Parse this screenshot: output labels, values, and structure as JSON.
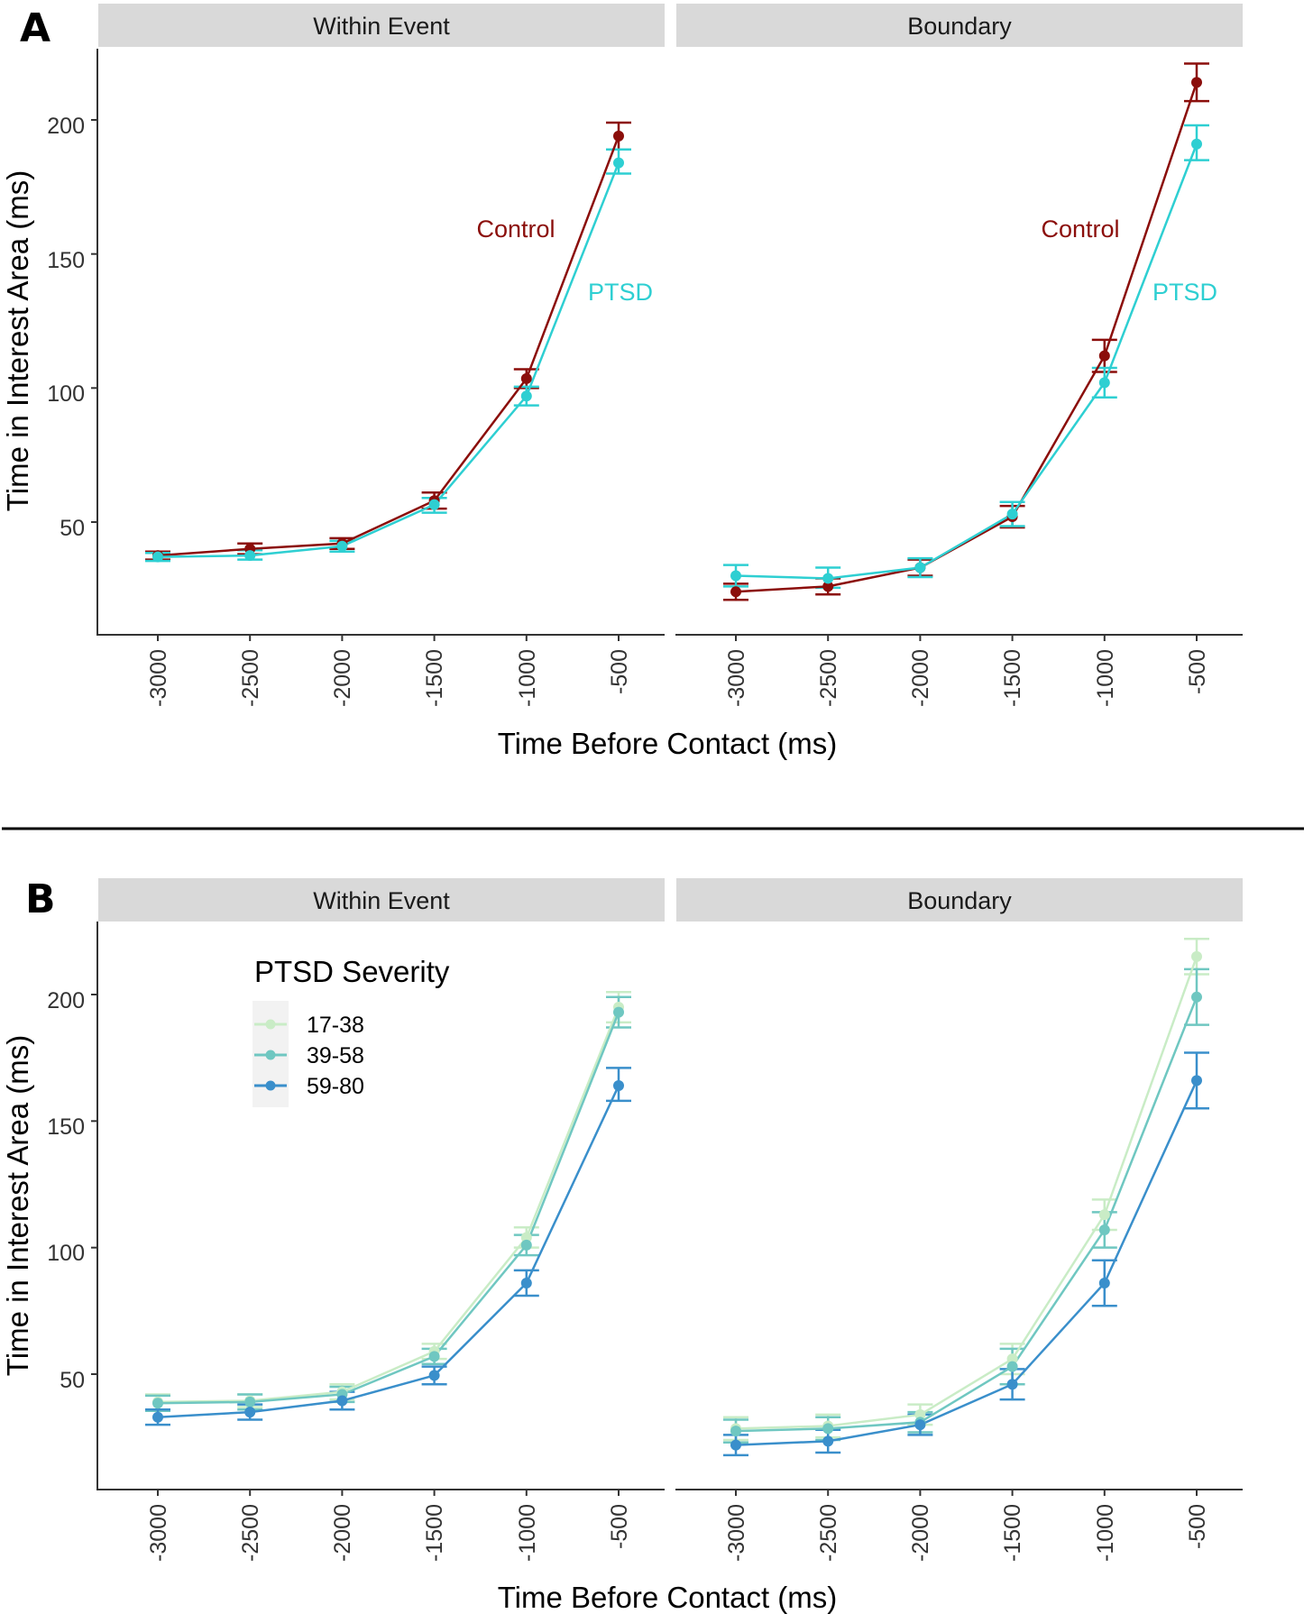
{
  "figure": {
    "divider": true
  },
  "chart_data": [
    {
      "panel_label": "A",
      "type": "line",
      "xlabel": "Time Before Contact (ms)",
      "ylabel": "Time in Interest Area (ms)",
      "x": [
        -3000,
        -2500,
        -2000,
        -1500,
        -1000,
        -500
      ],
      "x_tick_labels": [
        "-3000",
        "-2500",
        "-2000",
        "-1500",
        "-1000",
        "-500"
      ],
      "ylim": [
        12,
        222
      ],
      "y_ticks": [
        50,
        100,
        150,
        200
      ],
      "y_tick_labels": [
        "50",
        "100",
        "150",
        "200"
      ],
      "grid": false,
      "facets": [
        {
          "title": "Within Event",
          "series": [
            {
              "name": "Control",
              "color": "#8b0e0b",
              "values": [
                37.5,
                40,
                42,
                58,
                103.5,
                194
              ],
              "err_lo": [
                36,
                38,
                40,
                55,
                100,
                189
              ],
              "err_hi": [
                39,
                42,
                44,
                61,
                107,
                199
              ]
            },
            {
              "name": "PTSD",
              "color": "#2ecfd2",
              "values": [
                37,
                37.5,
                41,
                56.5,
                97,
                184
              ],
              "err_lo": [
                35.5,
                36,
                39,
                53.5,
                93.5,
                180
              ],
              "err_hi": [
                38.5,
                39.5,
                43,
                59,
                100.5,
                189
              ]
            }
          ],
          "annotations": [
            {
              "text": "Control",
              "color": "#8b0e0b",
              "x": -1000,
              "y": 164
            },
            {
              "text": "PTSD",
              "color": "#2ecfd2",
              "x": -500,
              "y": 140
            }
          ]
        },
        {
          "title": "Boundary",
          "series": [
            {
              "name": "Control",
              "color": "#8b0e0b",
              "values": [
                24,
                26,
                33,
                52,
                112,
                214
              ],
              "err_lo": [
                21,
                23,
                30,
                48,
                106,
                207
              ],
              "err_hi": [
                27,
                29,
                36,
                56,
                118,
                221
              ]
            },
            {
              "name": "PTSD",
              "color": "#2ecfd2",
              "values": [
                30,
                29,
                33,
                53,
                102,
                191
              ],
              "err_lo": [
                26,
                25.5,
                29.5,
                48.5,
                96.5,
                185
              ],
              "err_hi": [
                34,
                33,
                36.5,
                57.5,
                107.5,
                198
              ]
            }
          ],
          "annotations": [
            {
              "text": "Control",
              "color": "#8b0e0b",
              "x": -1500,
              "y": 164
            },
            {
              "text": "PTSD",
              "color": "#2ecfd2",
              "x": -500,
              "y": 140
            }
          ]
        }
      ]
    },
    {
      "panel_label": "B",
      "type": "line",
      "xlabel": "Time Before Contact (ms)",
      "ylabel": "Time in Interest Area (ms)",
      "x": [
        -3000,
        -2500,
        -2000,
        -1500,
        -1000,
        -500
      ],
      "x_tick_labels": [
        "-3000",
        "-2500",
        "-2000",
        "-1500",
        "-1000",
        "-500"
      ],
      "ylim": [
        13,
        225
      ],
      "y_ticks": [
        50,
        100,
        150,
        200
      ],
      "y_tick_labels": [
        "50",
        "100",
        "150",
        "200"
      ],
      "grid": false,
      "legend": {
        "title": "PTSD Severity",
        "position": "top-left",
        "entries": [
          {
            "label": "17-38",
            "color": "#c9ecc6"
          },
          {
            "label": "39-58",
            "color": "#6fc7c1"
          },
          {
            "label": "59-80",
            "color": "#3a8fcb"
          }
        ]
      },
      "facets": [
        {
          "title": "Within Event",
          "series": [
            {
              "name": "17-38",
              "color": "#c9ecc6",
              "values": [
                39,
                39.5,
                43,
                59,
                104,
                195
              ],
              "err_lo": [
                36,
                37,
                40,
                56,
                100,
                189
              ],
              "err_hi": [
                42,
                42,
                46,
                62,
                108,
                201
              ]
            },
            {
              "name": "39-58",
              "color": "#6fc7c1",
              "values": [
                38.5,
                39,
                42,
                57,
                101,
                193
              ],
              "err_lo": [
                35.5,
                36,
                39,
                54,
                97,
                187
              ],
              "err_hi": [
                41.5,
                42,
                45,
                60,
                105,
                199
              ]
            },
            {
              "name": "59-80",
              "color": "#3a8fcb",
              "values": [
                33,
                35,
                39.5,
                49.5,
                86,
                164
              ],
              "err_lo": [
                30,
                32,
                36,
                46,
                81,
                158
              ],
              "err_hi": [
                36,
                38,
                43,
                53,
                91,
                171
              ]
            }
          ]
        },
        {
          "title": "Boundary",
          "series": [
            {
              "name": "17-38",
              "color": "#c9ecc6",
              "values": [
                28.5,
                29.5,
                34,
                56,
                113,
                215
              ],
              "err_lo": [
                24,
                25,
                30,
                50,
                107,
                208
              ],
              "err_hi": [
                33,
                34,
                38,
                62,
                119,
                222
              ]
            },
            {
              "name": "39-58",
              "color": "#6fc7c1",
              "values": [
                27.5,
                28.5,
                31,
                53,
                107,
                199
              ],
              "err_lo": [
                23,
                24,
                27,
                46,
                100,
                188
              ],
              "err_hi": [
                32,
                33,
                35,
                60,
                114,
                210
              ]
            },
            {
              "name": "59-80",
              "color": "#3a8fcb",
              "values": [
                22,
                23.5,
                30,
                46,
                86,
                166
              ],
              "err_lo": [
                18,
                19,
                26,
                40,
                77,
                155
              ],
              "err_hi": [
                26,
                28,
                34,
                52,
                95,
                177
              ]
            }
          ]
        }
      ]
    }
  ]
}
